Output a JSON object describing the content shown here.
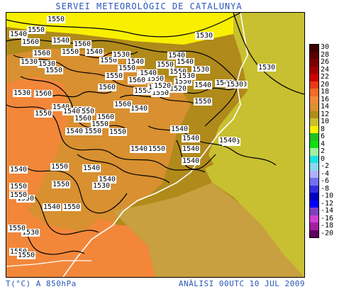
{
  "header": {
    "title": "SERVEI METEOROLÒGIC DE CATALUNYA"
  },
  "footer": {
    "left": "T(°C) A 850hPa",
    "right": "ANÀLISI 00UTC 10 JUL 2009"
  },
  "legend": {
    "items": [
      {
        "label": "30",
        "color": "#3b0000"
      },
      {
        "label": "28",
        "color": "#5a0000"
      },
      {
        "label": "26",
        "color": "#7a0000"
      },
      {
        "label": "24",
        "color": "#a00000"
      },
      {
        "label": "22",
        "color": "#cc0000"
      },
      {
        "label": "20",
        "color": "#e83a1a"
      },
      {
        "label": "18",
        "color": "#f06a28"
      },
      {
        "label": "16",
        "color": "#f2873a"
      },
      {
        "label": "14",
        "color": "#d89030"
      },
      {
        "label": "12",
        "color": "#b08a1a"
      },
      {
        "label": "10",
        "color": "#c8c030"
      },
      {
        "label": "8",
        "color": "#f8f000"
      },
      {
        "label": "6",
        "color": "#20c020"
      },
      {
        "label": "4",
        "color": "#10e010"
      },
      {
        "label": "2",
        "color": "#a0f0a0"
      },
      {
        "label": "0",
        "color": "#20e0e0"
      },
      {
        "label": "-2",
        "color": "#8ad8f0"
      },
      {
        "label": "-4",
        "color": "#b0b0ff"
      },
      {
        "label": "-6",
        "color": "#7070f0"
      },
      {
        "label": "-8",
        "color": "#3030e0"
      },
      {
        "label": "-10",
        "color": "#0000c0"
      },
      {
        "label": "-12",
        "color": "#0000ff"
      },
      {
        "label": "-14",
        "color": "#8040c0"
      },
      {
        "label": "-16",
        "color": "#d040d0"
      },
      {
        "label": "-18",
        "color": "#a020a0"
      },
      {
        "label": "-20",
        "color": "#600060"
      }
    ]
  },
  "contour_labels": [
    "1540",
    "1550",
    "1550",
    "1560",
    "1540",
    "1560",
    "1540",
    "1550",
    "1560",
    "1530",
    "1550",
    "1550",
    "1540",
    "1540",
    "1530",
    "1550",
    "1550",
    "1540",
    "1550",
    "1530",
    "1540",
    "1530",
    "1550",
    "1560",
    "1550",
    "1550",
    "1540",
    "1560",
    "1530",
    "1520",
    "1540",
    "1540",
    "1530",
    "1530",
    "1560",
    "1550",
    "1550",
    "1550",
    "1540",
    "1540",
    "1550",
    "1540",
    "1550",
    "1560",
    "1560",
    "1540",
    "1550",
    "1560",
    "1540",
    "1550",
    "1540",
    "1550",
    "1540",
    "1540",
    "1540",
    "1550",
    "1540",
    "1550",
    "1540",
    "1540",
    "1540",
    "1540",
    "1550",
    "1550",
    "1550",
    "1550",
    "1540",
    "1530",
    "1550",
    "1540",
    "1530",
    "1540",
    "1550",
    "1530",
    "1550",
    "1550",
    "1530",
    "1520",
    "1530",
    "1530"
  ]
}
